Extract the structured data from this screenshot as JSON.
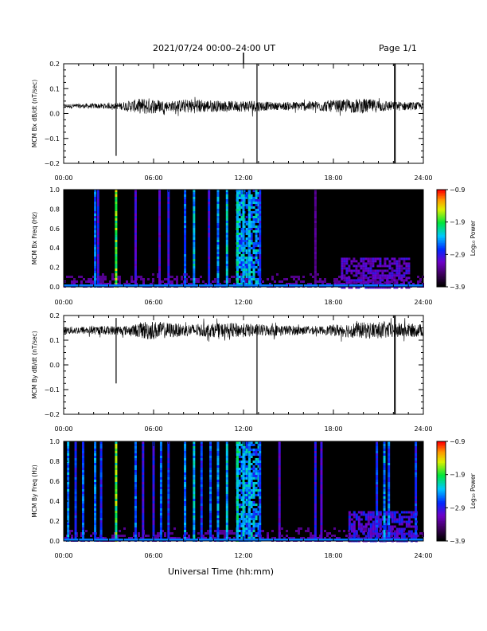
{
  "header": {
    "date_range": "2021/07/24  00:00–24:00 UT",
    "page": "Page 1/1"
  },
  "x_axis_title": "Universal Time (hh:mm)",
  "colors": {
    "background": "#ffffff",
    "axes": "#000000",
    "waveform": "#000000"
  },
  "chart_data": [
    {
      "type": "line",
      "ylabel": "MCM Bx dB/dt (nT/sec)",
      "xlim": [
        0,
        24
      ],
      "ylim": [
        -0.2,
        0.2
      ],
      "xticks": [
        "00:00",
        "06:00",
        "12:00",
        "18:00",
        "24:00"
      ],
      "yticks": [
        "0.2",
        "0.1",
        "0.0",
        "−0.1",
        "−0.2"
      ],
      "baseline": 0.03,
      "noise_envelope": [
        {
          "t": 0,
          "amp": 0.008
        },
        {
          "t": 3.5,
          "amp": 0.012
        },
        {
          "t": 5.5,
          "amp": 0.035
        },
        {
          "t": 7,
          "amp": 0.02
        },
        {
          "t": 8.5,
          "amp": 0.03
        },
        {
          "t": 11,
          "amp": 0.02
        },
        {
          "t": 12.5,
          "amp": 0.025
        },
        {
          "t": 14,
          "amp": 0.015
        },
        {
          "t": 18.5,
          "amp": 0.025
        },
        {
          "t": 20,
          "amp": 0.03
        },
        {
          "t": 22,
          "amp": 0.02
        },
        {
          "t": 24,
          "amp": 0.015
        }
      ],
      "spikes": [
        {
          "t": 3.5,
          "ymin": -0.17,
          "ymax": 0.19
        },
        {
          "t": 12.9,
          "ymin": -0.2,
          "ymax": 0.2
        },
        {
          "t": 22.1,
          "ymin": -0.2,
          "ymax": 0.2
        }
      ]
    },
    {
      "type": "heatmap",
      "ylabel": "MCM Bx Freq (Hz)",
      "xlim": [
        0,
        24
      ],
      "ylim": [
        0,
        1.0
      ],
      "xticks": [
        "00:00",
        "06:00",
        "12:00",
        "18:00",
        "24:00"
      ],
      "yticks": [
        "1.0",
        "0.8",
        "0.6",
        "0.4",
        "0.2",
        "0.0"
      ],
      "colorbar": {
        "label": "Log₁₀ Power",
        "min": -3.9,
        "max": -0.9,
        "ticks": [
          "−0.9",
          "−1.9",
          "−2.9",
          "−3.9"
        ]
      },
      "vertical_bands": [
        {
          "t": 2.1,
          "level": 0.45
        },
        {
          "t": 2.3,
          "level": 0.35
        },
        {
          "t": 3.5,
          "level": 0.75
        },
        {
          "t": 4.8,
          "level": 0.3
        },
        {
          "t": 6.4,
          "level": 0.3
        },
        {
          "t": 7.0,
          "level": 0.35
        },
        {
          "t": 8.1,
          "level": 0.45
        },
        {
          "t": 8.7,
          "level": 0.55
        },
        {
          "t": 9.7,
          "level": 0.35
        },
        {
          "t": 10.3,
          "level": 0.5
        },
        {
          "t": 10.9,
          "level": 0.55
        },
        {
          "t": 11.6,
          "level": 0.6
        },
        {
          "t": 12.0,
          "level": 0.55
        },
        {
          "t": 12.4,
          "level": 0.55
        },
        {
          "t": 13.1,
          "level": 0.4
        },
        {
          "t": 16.8,
          "level": 0.2
        }
      ],
      "broad_regions": [
        {
          "t0": 11.5,
          "t1": 13.0,
          "level": 0.55
        },
        {
          "t0": 18.5,
          "t1": 23.0,
          "fmax": 0.3,
          "level": 0.3
        }
      ]
    },
    {
      "type": "line",
      "ylabel": "MCM By dB/dt (nT/sec)",
      "xlim": [
        0,
        24
      ],
      "ylim": [
        -0.2,
        0.2
      ],
      "xticks": [
        "00:00",
        "06:00",
        "12:00",
        "18:00",
        "24:00"
      ],
      "yticks": [
        "0.2",
        "0.1",
        "0.0",
        "−0.1",
        "−0.2"
      ],
      "baseline": 0.14,
      "noise_envelope": [
        {
          "t": 0,
          "amp": 0.015
        },
        {
          "t": 4.5,
          "amp": 0.02
        },
        {
          "t": 5.5,
          "amp": 0.04
        },
        {
          "t": 8,
          "amp": 0.025
        },
        {
          "t": 11.5,
          "amp": 0.03
        },
        {
          "t": 13,
          "amp": 0.025
        },
        {
          "t": 17,
          "amp": 0.015
        },
        {
          "t": 19,
          "amp": 0.03
        },
        {
          "t": 21,
          "amp": 0.035
        },
        {
          "t": 24,
          "amp": 0.025
        }
      ],
      "spikes": [
        {
          "t": 3.5,
          "ymin": -0.075,
          "ymax": 0.19
        },
        {
          "t": 12.9,
          "ymin": -0.2,
          "ymax": 0.15
        },
        {
          "t": 22.1,
          "ymin": -0.2,
          "ymax": 0.2
        }
      ]
    },
    {
      "type": "heatmap",
      "ylabel": "MCM By Freq (Hz)",
      "xlim": [
        0,
        24
      ],
      "ylim": [
        0,
        1.0
      ],
      "xticks": [
        "00:00",
        "06:00",
        "12:00",
        "18:00",
        "24:00"
      ],
      "yticks": [
        "1.0",
        "0.8",
        "0.6",
        "0.4",
        "0.2",
        "0.0"
      ],
      "colorbar": {
        "label": "Log₁₀ Power",
        "min": -3.9,
        "max": -0.9,
        "ticks": [
          "−0.9",
          "−1.9",
          "−2.9",
          "−3.9"
        ]
      },
      "vertical_bands": [
        {
          "t": 0.3,
          "level": 0.5
        },
        {
          "t": 0.8,
          "level": 0.4
        },
        {
          "t": 1.3,
          "level": 0.45
        },
        {
          "t": 2.1,
          "level": 0.5
        },
        {
          "t": 2.5,
          "level": 0.4
        },
        {
          "t": 3.5,
          "level": 0.75
        },
        {
          "t": 4.8,
          "level": 0.45
        },
        {
          "t": 5.3,
          "level": 0.35
        },
        {
          "t": 6.0,
          "level": 0.35
        },
        {
          "t": 6.5,
          "level": 0.45
        },
        {
          "t": 7.0,
          "level": 0.4
        },
        {
          "t": 8.1,
          "level": 0.5
        },
        {
          "t": 8.7,
          "level": 0.55
        },
        {
          "t": 9.2,
          "level": 0.4
        },
        {
          "t": 9.8,
          "level": 0.45
        },
        {
          "t": 10.3,
          "level": 0.5
        },
        {
          "t": 10.9,
          "level": 0.55
        },
        {
          "t": 11.6,
          "level": 0.6
        },
        {
          "t": 12.0,
          "level": 0.55
        },
        {
          "t": 12.4,
          "level": 0.55
        },
        {
          "t": 13.1,
          "level": 0.45
        },
        {
          "t": 14.4,
          "level": 0.3
        },
        {
          "t": 16.8,
          "level": 0.35
        },
        {
          "t": 17.2,
          "level": 0.3
        },
        {
          "t": 20.9,
          "level": 0.4
        },
        {
          "t": 21.4,
          "level": 0.5
        },
        {
          "t": 21.7,
          "level": 0.45
        },
        {
          "t": 23.5,
          "level": 0.4
        }
      ],
      "broad_regions": [
        {
          "t0": 11.5,
          "t1": 13.0,
          "level": 0.55
        },
        {
          "t0": 19.0,
          "t1": 23.5,
          "fmax": 0.3,
          "level": 0.35
        }
      ]
    }
  ]
}
